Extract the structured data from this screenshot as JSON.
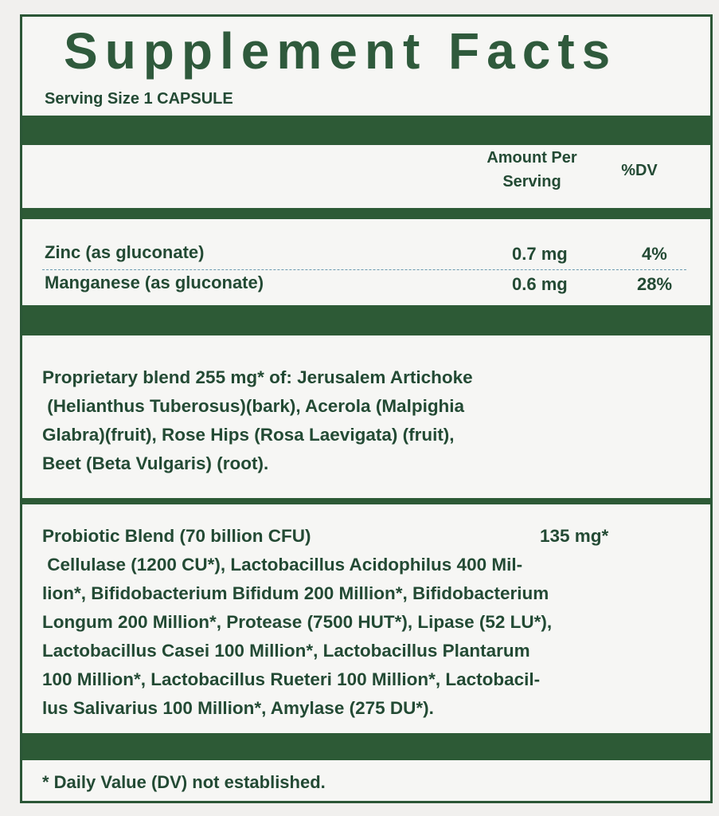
{
  "title": "Supplement Facts",
  "serving_size": "Serving Size 1 CAPSULE",
  "columns": {
    "amount": "Amount Per Serving",
    "amount_line1": "Amount Per",
    "amount_line2": "Serving",
    "dv": "%DV"
  },
  "nutrients": [
    {
      "name": "Zinc (as gluconate)",
      "amount": "0.7 mg",
      "dv": "4%"
    },
    {
      "name": "Manganese (as gluconate)",
      "amount": "0.6 mg",
      "dv": "28%"
    }
  ],
  "proprietary_blend": {
    "lines": [
      "Proprietary blend 255 mg* of: Jerusalem Artichoke",
      " (Helianthus Tuberosus)(bark), Acerola (Malpighia",
      "Glabra)(fruit), Rose Hips (Rosa Laevigata) (fruit),",
      "Beet (Beta Vulgaris) (root)."
    ]
  },
  "probiotic_blend": {
    "name": "Probiotic Blend (70 billion CFU)",
    "amount": "135 mg*",
    "lines": [
      " Cellulase (1200 CU*), Lactobacillus Acidophilus 400 Mil-",
      "lion*, Bifidobacterium Bifidum 200 Million*, Bifidobacterium",
      "Longum 200 Million*, Protease (7500 HUT*), Lipase (52 LU*),",
      "Lactobacillus Casei 100 Million*, Lactobacillus Plantarum",
      "100 Million*, Lactobacillus Rueteri 100 Million*, Lactobacil-",
      "lus Salivarius 100 Million*, Amylase (275 DU*)."
    ]
  },
  "footnote": "* Daily Value (DV) not established.",
  "colors": {
    "text": "#234a34",
    "bar": "#2d5a36",
    "background": "#f6f6f4"
  }
}
